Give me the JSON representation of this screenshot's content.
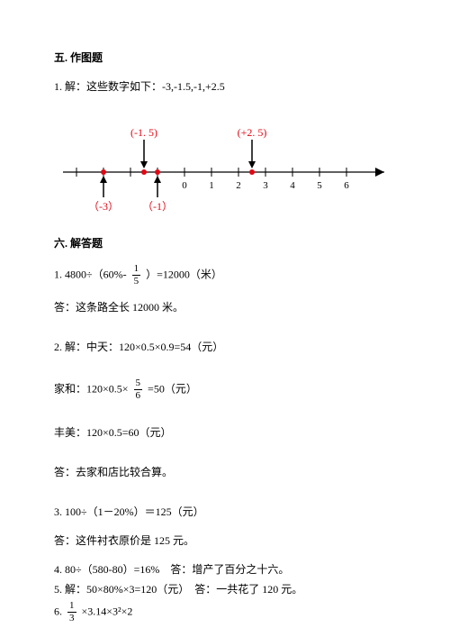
{
  "sec5": {
    "title": "五. 作图题",
    "q1_text": "1. 解：这些数字如下：-3,-1.5,-1,+2.5",
    "numberline": {
      "xmin": -4,
      "xmax": 7,
      "ticks": [
        -4,
        -3,
        -2,
        -1,
        0,
        1,
        2,
        3,
        4,
        5,
        6
      ],
      "labels": [
        {
          "x": 0,
          "t": "0"
        },
        {
          "x": 1,
          "t": "1"
        },
        {
          "x": 2,
          "t": "2"
        },
        {
          "x": 3,
          "t": "3"
        },
        {
          "x": 4,
          "t": "4"
        },
        {
          "x": 5,
          "t": "5"
        },
        {
          "x": 6,
          "t": "6"
        }
      ],
      "arrows_above": [
        {
          "x": -1.5,
          "label": "(-1. 5)"
        },
        {
          "x": 2.5,
          "label": "(+2. 5)"
        }
      ],
      "arrows_below": [
        {
          "x": -3,
          "label": "（-3）"
        },
        {
          "x": -1,
          "label": "（-1）"
        }
      ],
      "points": [
        -3,
        -1.5,
        -1,
        2.5
      ],
      "colors": {
        "label": "#e30613",
        "point": "#e30613",
        "line": "#000000"
      },
      "font_size_label": 12
    }
  },
  "sec6": {
    "title": "六. 解答题",
    "q1": {
      "pre": "1. 4800÷（60%-",
      "frac_num": "1",
      "frac_den": "5",
      "post": "）=12000（米）",
      "ans": "答：这条路全长 12000 米。"
    },
    "q2": {
      "l1": "2. 解：中天：120×0.5×0.9=54（元）",
      "l2_pre": "家和：120×0.5×",
      "l2_num": "5",
      "l2_den": "6",
      "l2_post": "=50（元）",
      "l3": "丰美：120×0.5=60（元）",
      "ans": "答：去家和店比较合算。"
    },
    "q3": {
      "l1": "3. 100÷（1－20%）＝125（元）",
      "ans": "答：这件衬衣原价是 125 元。"
    },
    "q4": "4. 80÷（580-80）=16%　答：增产了百分之十六。",
    "q5": "5. 解：50×80%×3=120（元）　答：一共花了 120 元。",
    "q6": {
      "pre": "6.",
      "num": "1",
      "den": "3",
      "post": "×3.14×3²×2"
    }
  }
}
